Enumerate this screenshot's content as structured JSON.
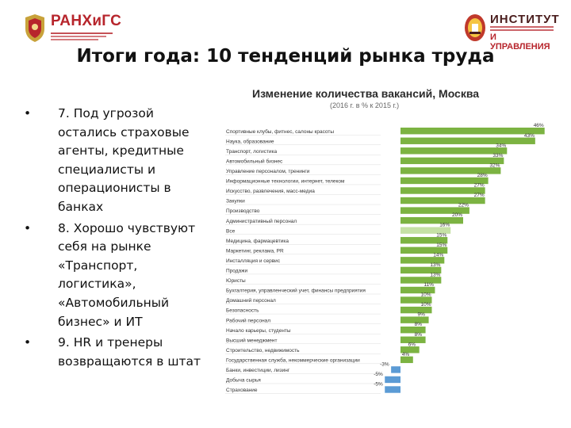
{
  "header": {
    "logo_left_name": "РАНХиГС",
    "logo_right_line1": "ИНСТИТУТ",
    "logo_right_line3": "И УПРАВЛЕНИЯ"
  },
  "slide": {
    "title": "Итоги года: 10 тенденций рынка труда",
    "bullets": [
      "7. Под угрозой остались страховые агенты, кредитные специалисты и операционисты в банках",
      "8. Хорошо чувствуют себя на рынке «Транспорт, логистика», «Автомобильный бизнес» и ИТ",
      "9. HR и тренеры возвращаются в штат"
    ]
  },
  "colors": {
    "increase": "#7cb342",
    "total": "#c5e1a5",
    "decrease": "#5b9bd5"
  },
  "chart_data": {
    "type": "bar",
    "orientation": "horizontal",
    "title": "Изменение количества вакансий, Москва",
    "subtitle": "(2016 г. в % к 2015 г.)",
    "unit": "%",
    "categories": [
      "Спортивные клубы, фитнес, салоны красоты",
      "Наука, образование",
      "Транспорт, логистика",
      "Автомобильный бизнес",
      "Управление персоналом, тренинги",
      "Информационные технологии, интернет, телеком",
      "Искусство, развлечения, масс-медиа",
      "Закупки",
      "Производство",
      "Административный персонал",
      "Все",
      "Медицина, фармацевтика",
      "Маркетинг, реклама, PR",
      "Инсталляция и сервис",
      "Продажи",
      "Юристы",
      "Бухгалтерия, управленческий учет, финансы предприятия",
      "Домашний персонал",
      "Безопасность",
      "Рабочий персонал",
      "Начало карьеры, студенты",
      "Высший менеджмент",
      "Строительство, недвижимость",
      "Государственная служба, некоммерческие организации",
      "Банки, инвестиции, лизинг",
      "Добыча сырья",
      "Страхование"
    ],
    "values": [
      46,
      43,
      34,
      33,
      32,
      28,
      27,
      27,
      22,
      20,
      16,
      15,
      15,
      14,
      13,
      13,
      11,
      10,
      10,
      9,
      8,
      8,
      6,
      4,
      -3,
      -5,
      -5
    ],
    "value_labels": [
      "46%",
      "43%",
      "34%",
      "33%",
      "32%",
      "28%",
      "27%",
      "27%",
      "22%",
      "20%",
      "16%",
      "15%",
      "15%",
      "14%",
      "13%",
      "13%",
      "11%",
      "10%",
      "10%",
      "9%",
      "8%",
      "8%",
      "6%",
      "4%",
      "-3%",
      "-5%",
      "-5%"
    ],
    "highlight_category": "Все",
    "grid": false,
    "legend": "none"
  }
}
